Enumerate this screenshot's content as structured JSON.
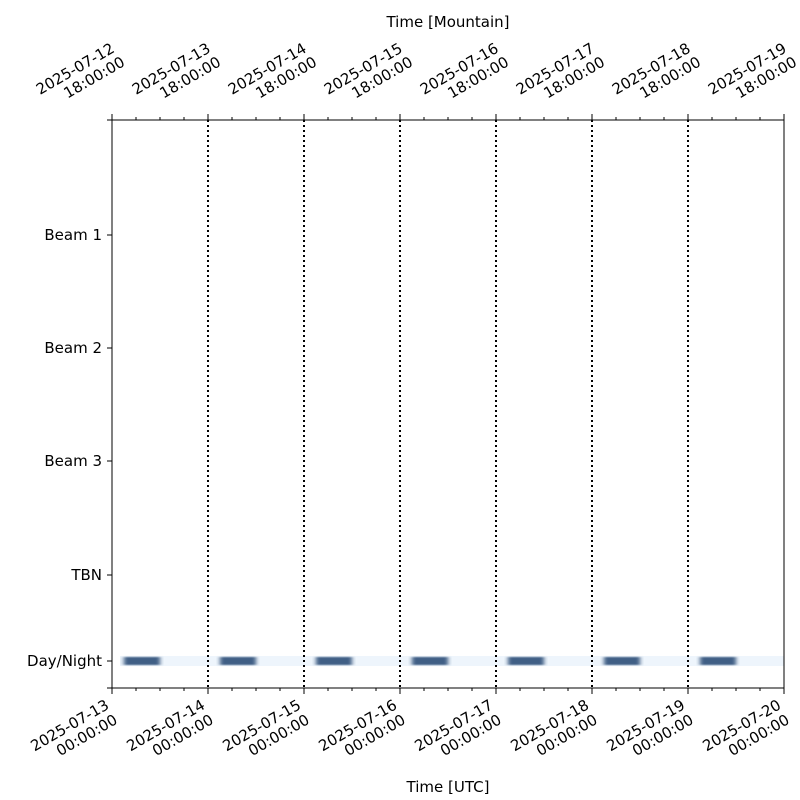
{
  "chart_data": {
    "type": "timeline",
    "top_axis_label": "Time [Mountain]",
    "bottom_axis_label": "Time [UTC]",
    "x_range": [
      "2025-07-13 00:00:00",
      "2025-07-20 00:00:00"
    ],
    "bottom_ticks": [
      [
        "2025-07-13",
        "00:00:00"
      ],
      [
        "2025-07-14",
        "00:00:00"
      ],
      [
        "2025-07-15",
        "00:00:00"
      ],
      [
        "2025-07-16",
        "00:00:00"
      ],
      [
        "2025-07-17",
        "00:00:00"
      ],
      [
        "2025-07-18",
        "00:00:00"
      ],
      [
        "2025-07-19",
        "00:00:00"
      ],
      [
        "2025-07-20",
        "00:00:00"
      ]
    ],
    "top_ticks": [
      [
        "2025-07-12",
        "18:00:00"
      ],
      [
        "2025-07-13",
        "18:00:00"
      ],
      [
        "2025-07-14",
        "18:00:00"
      ],
      [
        "2025-07-15",
        "18:00:00"
      ],
      [
        "2025-07-16",
        "18:00:00"
      ],
      [
        "2025-07-17",
        "18:00:00"
      ],
      [
        "2025-07-18",
        "18:00:00"
      ],
      [
        "2025-07-19",
        "18:00:00"
      ]
    ],
    "rows": [
      "Beam 1",
      "Beam 2",
      "Beam 3",
      "TBN",
      "Day/Night"
    ],
    "day_boundaries": [
      "2025-07-14 00:00:00",
      "2025-07-15 00:00:00",
      "2025-07-16 00:00:00",
      "2025-07-17 00:00:00",
      "2025-07-18 00:00:00",
      "2025-07-19 00:00:00"
    ],
    "night_intervals": [
      [
        "2025-07-13 03:00:00",
        "2025-07-13 12:00:00"
      ],
      [
        "2025-07-14 03:00:00",
        "2025-07-14 12:00:00"
      ],
      [
        "2025-07-15 03:00:00",
        "2025-07-15 12:00:00"
      ],
      [
        "2025-07-16 03:00:00",
        "2025-07-16 12:00:00"
      ],
      [
        "2025-07-17 03:00:00",
        "2025-07-17 12:00:00"
      ],
      [
        "2025-07-18 03:00:00",
        "2025-07-18 12:00:00"
      ],
      [
        "2025-07-19 03:00:00",
        "2025-07-19 12:00:00"
      ]
    ],
    "colors": {
      "night": "#3f5f85",
      "day": "#eef5fc"
    }
  }
}
